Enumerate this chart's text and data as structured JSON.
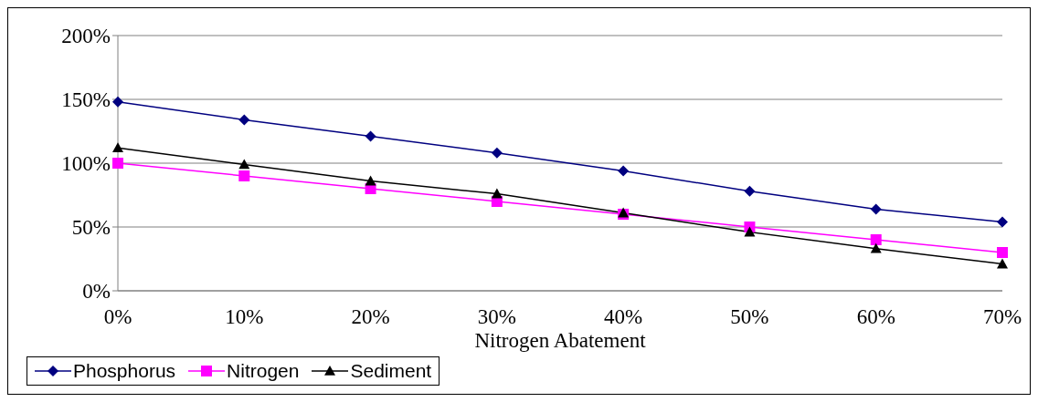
{
  "chart_data": {
    "type": "line",
    "xlabel": "Nitrogen Abatement",
    "categories": [
      "0%",
      "10%",
      "20%",
      "30%",
      "40%",
      "50%",
      "60%",
      "70%"
    ],
    "series": [
      {
        "name": "Phosphorus",
        "color": "#000080",
        "marker": "diamond",
        "values": [
          148,
          134,
          121,
          108,
          94,
          78,
          64,
          54
        ]
      },
      {
        "name": "Nitrogen",
        "color": "#ff00ff",
        "marker": "square",
        "values": [
          100,
          90,
          80,
          70,
          60,
          50,
          40,
          30
        ]
      },
      {
        "name": "Sediment",
        "color": "#000000",
        "marker": "triangle",
        "values": [
          112,
          99,
          86,
          76,
          61,
          46,
          33,
          21
        ]
      }
    ],
    "ylim": [
      0,
      200
    ],
    "yticks": [
      {
        "value": 0,
        "label": "0%"
      },
      {
        "value": 50,
        "label": "50%"
      },
      {
        "value": 100,
        "label": "100%"
      },
      {
        "value": 150,
        "label": "150%"
      },
      {
        "value": 200,
        "label": "200%"
      }
    ],
    "grid": "y",
    "legend": "bottom"
  }
}
